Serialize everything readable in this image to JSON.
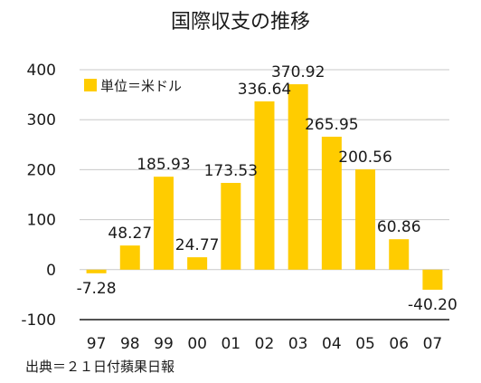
{
  "chart_data": {
    "type": "bar",
    "title": "国際収支の推移",
    "categories": [
      "97",
      "98",
      "99",
      "00",
      "01",
      "02",
      "03",
      "04",
      "05",
      "06",
      "07"
    ],
    "series": [
      {
        "name": "単位＝米ドル",
        "values": [
          -7.28,
          48.27,
          185.93,
          24.77,
          173.53,
          336.64,
          370.92,
          265.95,
          200.56,
          60.86,
          -40.2
        ],
        "labels": [
          "-7.28",
          "48.27",
          "185.93",
          "24.77",
          "173.53",
          "336.64",
          "370.92",
          "265.95",
          "200.56",
          "60.86",
          "-40.20"
        ],
        "color": "#ffcc00"
      }
    ],
    "ylim": [
      -100,
      400
    ],
    "yticks": [
      "-100",
      "0",
      "100",
      "200",
      "300",
      "400"
    ],
    "grid": true,
    "legend_position": "top-left"
  },
  "source": "出典＝２１日付蘋果日報"
}
